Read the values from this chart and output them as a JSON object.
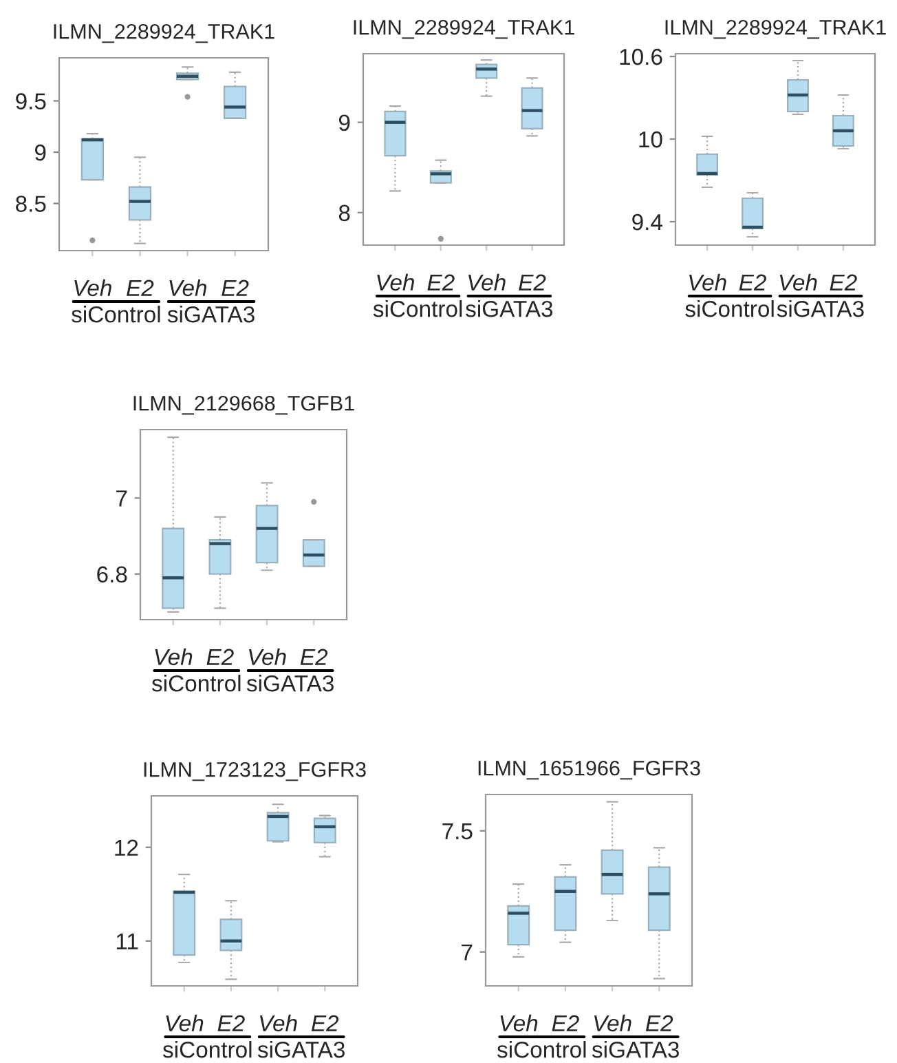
{
  "chart_data": [
    {
      "type": "box",
      "title": "ILMN_2289924_TRAK1",
      "categories": [
        "Veh",
        "E2",
        "Veh",
        "E2"
      ],
      "annotations": [
        "siControl",
        "siGATA3"
      ],
      "color": "#b5dcef",
      "ylim": [
        8.04,
        9.92
      ],
      "yticks": [
        8.5,
        9,
        9.5
      ],
      "grid": false,
      "boxes": [
        {
          "low": 8.73,
          "q1": 8.73,
          "median": 9.12,
          "q3": 9.13,
          "high": 9.18,
          "outliers": [
            8.14
          ]
        },
        {
          "low": 8.11,
          "q1": 8.34,
          "median": 8.52,
          "q3": 8.66,
          "high": 8.95
        },
        {
          "low": 9.71,
          "q1": 9.71,
          "median": 9.74,
          "q3": 9.77,
          "high": 9.83,
          "outliers": [
            9.54
          ]
        },
        {
          "low": 9.33,
          "q1": 9.33,
          "median": 9.44,
          "q3": 9.64,
          "high": 9.78
        }
      ]
    },
    {
      "type": "box",
      "title": "ILMN_2289924_TRAK1",
      "categories": [
        "Veh",
        "E2",
        "Veh",
        "E2"
      ],
      "annotations": [
        "siControl",
        "siGATA3"
      ],
      "color": "#b5dcef",
      "ylim": [
        7.64,
        9.76
      ],
      "yticks": [
        8,
        9
      ],
      "grid": false,
      "boxes": [
        {
          "low": 8.24,
          "q1": 8.63,
          "median": 9.0,
          "q3": 9.12,
          "high": 9.18
        },
        {
          "low": 8.33,
          "q1": 8.33,
          "median": 8.43,
          "q3": 8.46,
          "high": 8.58,
          "outliers": [
            7.71
          ]
        },
        {
          "low": 9.29,
          "q1": 9.49,
          "median": 9.59,
          "q3": 9.64,
          "high": 9.69
        },
        {
          "low": 8.85,
          "q1": 8.93,
          "median": 9.13,
          "q3": 9.38,
          "high": 9.49
        }
      ]
    },
    {
      "type": "box",
      "title": "ILMN_2289924_TRAK1",
      "categories": [
        "Veh",
        "E2",
        "Veh",
        "E2"
      ],
      "annotations": [
        "siControl",
        "siGATA3"
      ],
      "color": "#b5dcef",
      "ylim": [
        9.23,
        10.62
      ],
      "yticks": [
        9.4,
        10,
        10.6
      ],
      "grid": false,
      "boxes": [
        {
          "low": 9.65,
          "q1": 9.74,
          "median": 9.75,
          "q3": 9.89,
          "high": 10.02
        },
        {
          "low": 9.29,
          "q1": 9.35,
          "median": 9.36,
          "q3": 9.57,
          "high": 9.61
        },
        {
          "low": 10.18,
          "q1": 10.2,
          "median": 10.32,
          "q3": 10.43,
          "high": 10.57
        },
        {
          "low": 9.93,
          "q1": 9.95,
          "median": 10.06,
          "q3": 10.17,
          "high": 10.32
        }
      ]
    },
    {
      "type": "box",
      "title": "ILMN_2129668_TGFB1",
      "categories": [
        "Veh",
        "E2",
        "Veh",
        "E2"
      ],
      "annotations": [
        "siControl",
        "siGATA3"
      ],
      "color": "#b5dcef",
      "ylim": [
        6.68,
        7.18
      ],
      "yticks": [
        6.8,
        7
      ],
      "grid": false,
      "boxes": [
        {
          "low": 6.7,
          "q1": 6.71,
          "median": 6.79,
          "q3": 6.92,
          "high": 7.16
        },
        {
          "low": 6.71,
          "q1": 6.8,
          "median": 6.88,
          "q3": 6.89,
          "high": 6.95
        },
        {
          "low": 6.81,
          "q1": 6.83,
          "median": 6.92,
          "q3": 6.98,
          "high": 7.04
        },
        {
          "low": 6.82,
          "q1": 6.82,
          "median": 6.85,
          "q3": 6.89,
          "high": 6.89,
          "outliers": [
            6.99
          ]
        }
      ]
    },
    {
      "type": "box",
      "title": "ILMN_1723123_FGFR3",
      "categories": [
        "Veh",
        "E2",
        "Veh",
        "E2"
      ],
      "annotations": [
        "siControl",
        "siGATA3"
      ],
      "color": "#b5dcef",
      "ylim": [
        10.52,
        12.55
      ],
      "yticks": [
        11,
        12
      ],
      "grid": false,
      "boxes": [
        {
          "low": 10.77,
          "q1": 10.85,
          "median": 11.52,
          "q3": 11.53,
          "high": 11.71
        },
        {
          "low": 10.59,
          "q1": 10.9,
          "median": 11.0,
          "q3": 11.23,
          "high": 11.43
        },
        {
          "low": 12.06,
          "q1": 12.07,
          "median": 12.33,
          "q3": 12.37,
          "high": 12.46
        },
        {
          "low": 11.9,
          "q1": 12.05,
          "median": 12.22,
          "q3": 12.31,
          "high": 12.34
        }
      ]
    },
    {
      "type": "box",
      "title": "ILMN_1651966_FGFR3",
      "categories": [
        "Veh",
        "E2",
        "Veh",
        "E2"
      ],
      "annotations": [
        "siControl",
        "siGATA3"
      ],
      "color": "#b5dcef",
      "ylim": [
        6.86,
        7.65
      ],
      "yticks": [
        7,
        7.5
      ],
      "grid": false,
      "boxes": [
        {
          "low": 6.98,
          "q1": 7.03,
          "median": 7.16,
          "q3": 7.19,
          "high": 7.28
        },
        {
          "low": 7.04,
          "q1": 7.09,
          "median": 7.25,
          "q3": 7.31,
          "high": 7.36
        },
        {
          "low": 7.13,
          "q1": 7.24,
          "median": 7.32,
          "q3": 7.42,
          "high": 7.62
        },
        {
          "low": 6.89,
          "q1": 7.09,
          "median": 7.24,
          "q3": 7.35,
          "high": 7.43
        }
      ]
    }
  ]
}
